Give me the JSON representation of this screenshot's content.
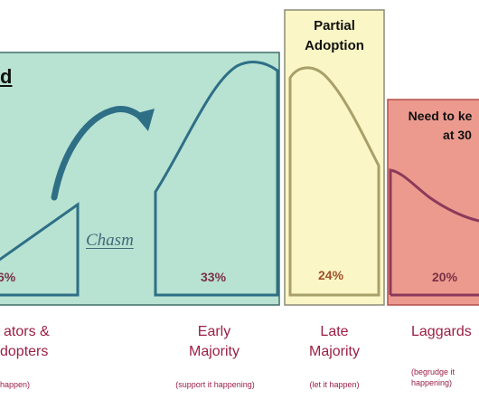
{
  "heading_fragment": "d",
  "chasm_label": "Chasm",
  "panels": {
    "partial_adoption": {
      "title": "Partial Adoption"
    },
    "need_to_keep": {
      "title_line1": "Need to ke",
      "title_line2": "at 30"
    }
  },
  "categories": [
    {
      "id": "innovators",
      "title_line1": "ators &",
      "title_line2": "dopters",
      "note_line1": "happen)",
      "note_line2": "",
      "percent": "6%"
    },
    {
      "id": "early-majority",
      "title_line1": "Early",
      "title_line2": "Majority",
      "note_line1": "(support it happening)",
      "note_line2": "",
      "percent": "33%"
    },
    {
      "id": "late-majority",
      "title_line1": "Late",
      "title_line2": "Majority",
      "note_line1": "(let it happen)",
      "note_line2": "",
      "percent": "24%"
    },
    {
      "id": "laggards",
      "title_line1": "Laggards",
      "title_line2": "",
      "note_line1": "(begrudge it",
      "note_line2": "happening)",
      "percent": "20%"
    }
  ],
  "colors": {
    "green_panel": "#b8e2d2",
    "green_border": "#3f6f68",
    "yellow_panel": "#fbf6c5",
    "yellow_border": "#8b8b7a",
    "red_panel": "#ec9a8e",
    "red_border": "#b3504a",
    "curve_green": "#2e6f86",
    "curve_yellow": "#a8a06a",
    "curve_red": "#8c3a5a",
    "arrow": "#2e6f86",
    "text_maroon": "#9b1f45"
  }
}
